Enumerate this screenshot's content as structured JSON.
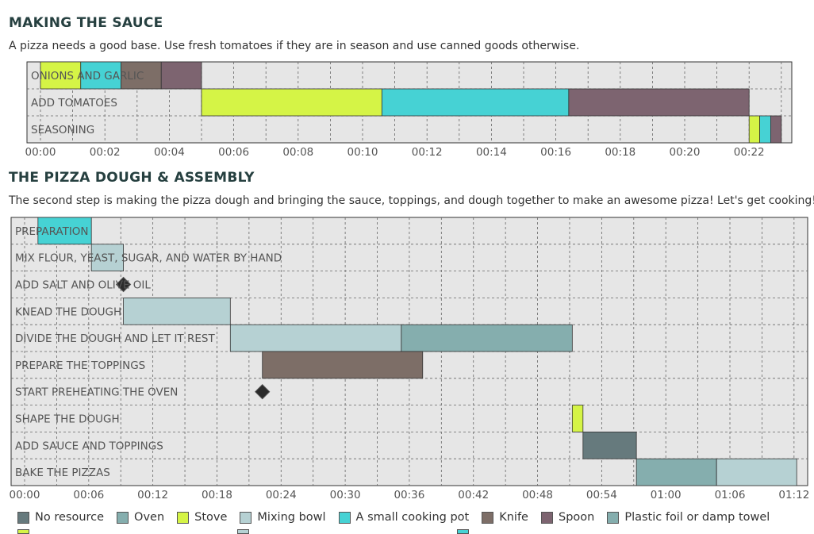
{
  "chart_data": [
    {
      "type": "gantt",
      "title": "MAKING THE SAUCE",
      "description": "A pizza needs a good base. Use fresh tomatoes if they are in season and use canned goods otherwise.",
      "x_unit": "minutes",
      "x_tick_labels": [
        "00:00",
        "00:02",
        "00:04",
        "00:06",
        "00:08",
        "00:10",
        "00:12",
        "00:14",
        "00:16",
        "00:18",
        "00:20",
        "00:22"
      ],
      "x_range": [
        0,
        23.5
      ],
      "grid": true,
      "tasks": [
        {
          "name": "ONIONS AND GARLIC",
          "segments": [
            {
              "resource": "Stove",
              "start": 0,
              "end": 1.25
            },
            {
              "resource": "A small cooking pot",
              "start": 1.25,
              "end": 2.5
            },
            {
              "resource": "Knife",
              "start": 2.5,
              "end": 3.75
            },
            {
              "resource": "Spoon",
              "start": 3.75,
              "end": 5.0
            }
          ]
        },
        {
          "name": "ADD TOMATOES",
          "segments": [
            {
              "resource": "Stove",
              "start": 5.0,
              "end": 10.6
            },
            {
              "resource": "A small cooking pot",
              "start": 10.6,
              "end": 16.4
            },
            {
              "resource": "Spoon",
              "start": 16.4,
              "end": 22.0
            }
          ]
        },
        {
          "name": "SEASONING",
          "segments": [
            {
              "resource": "Stove",
              "start": 22.0,
              "end": 22.33
            },
            {
              "resource": "A small cooking pot",
              "start": 22.33,
              "end": 22.67
            },
            {
              "resource": "Spoon",
              "start": 22.67,
              "end": 23.0
            }
          ]
        }
      ]
    },
    {
      "type": "gantt",
      "title": "THE PIZZA DOUGH & ASSEMBLY",
      "description": "The second step is making the pizza dough and bringing the sauce, toppings, and dough together to make an awesome pizza! Let's get cooking!",
      "x_unit": "minutes",
      "x_tick_labels": [
        "00:00",
        "00:06",
        "00:12",
        "00:18",
        "00:24",
        "00:30",
        "00:36",
        "00:42",
        "00:48",
        "00:54",
        "01:00",
        "01:06",
        "01:12"
      ],
      "x_range": [
        0,
        72
      ],
      "grid": true,
      "tasks": [
        {
          "name": "PREPARATION",
          "segments": [
            {
              "resource": "A small cooking pot",
              "start": 1.25,
              "end": 6.25
            }
          ]
        },
        {
          "name": "MIX FLOUR, YEAST, SUGAR, AND WATER BY HAND",
          "segments": [
            {
              "resource": "Mixing bowl",
              "start": 6.25,
              "end": 9.25
            }
          ]
        },
        {
          "name": "ADD SALT AND OLIVE OIL",
          "milestone": 9.25
        },
        {
          "name": "KNEAD THE DOUGH",
          "segments": [
            {
              "resource": "Mixing bowl",
              "start": 9.25,
              "end": 19.25
            }
          ]
        },
        {
          "name": "DIVIDE THE DOUGH AND LET IT REST",
          "segments": [
            {
              "resource": "Mixing bowl",
              "start": 19.25,
              "end": 35.25
            },
            {
              "resource": "Plastic foil or damp towel",
              "start": 35.25,
              "end": 51.25
            }
          ]
        },
        {
          "name": "PREPARE THE TOPPINGS",
          "segments": [
            {
              "resource": "Knife",
              "start": 22.25,
              "end": 37.25
            }
          ]
        },
        {
          "name": "START PREHEATING THE OVEN",
          "milestone": 22.25
        },
        {
          "name": "SHAPE THE DOUGH",
          "segments": [
            {
              "resource": "Stove",
              "start": 51.25,
              "end": 52.25
            }
          ]
        },
        {
          "name": "ADD SAUCE AND TOPPINGS",
          "segments": [
            {
              "resource": "No resource",
              "start": 52.25,
              "end": 57.25
            }
          ]
        },
        {
          "name": "BAKE THE PIZZAS",
          "segments": [
            {
              "resource": "Oven",
              "start": 57.25,
              "end": 64.75
            },
            {
              "resource": "Mixing bowl",
              "start": 64.75,
              "end": 72.25
            }
          ]
        }
      ]
    }
  ],
  "legend": [
    {
      "label": "No resource",
      "color": "#667a7d"
    },
    {
      "label": "Oven",
      "color": "#85aeae"
    },
    {
      "label": "Stove",
      "color": "#d5f446"
    },
    {
      "label": "Mixing bowl",
      "color": "#b6d1d3"
    },
    {
      "label": "A small cooking pot",
      "color": "#46d2d4"
    },
    {
      "label": "Knife",
      "color": "#7d6e67"
    },
    {
      "label": "Spoon",
      "color": "#7d6470"
    },
    {
      "label": "Plastic foil or damp towel",
      "color": "#85aeae"
    }
  ],
  "legend_overflow_colors": [
    "#d5f446",
    "#b6d1d3",
    "#46d2d4"
  ]
}
